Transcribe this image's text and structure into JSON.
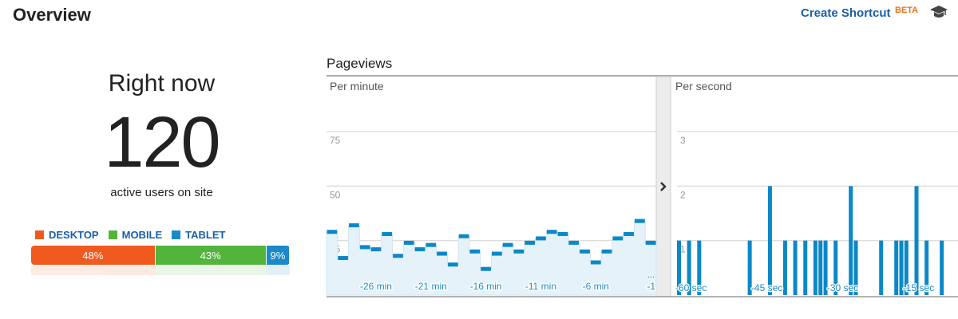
{
  "header": {
    "title": "Overview",
    "shortcut_label": "Create Shortcut",
    "beta_label": "BETA",
    "icon": "graduation-cap-icon"
  },
  "right_now": {
    "label": "Right now",
    "count": "120",
    "subtitle": "active users on site"
  },
  "devices": {
    "legend": [
      {
        "label": "DESKTOP",
        "color": "#f05a1e"
      },
      {
        "label": "MOBILE",
        "color": "#52b43b"
      },
      {
        "label": "TABLET",
        "color": "#1a8ac8"
      }
    ],
    "segments": [
      {
        "label": "48%",
        "value": 48,
        "color": "#f05a1e"
      },
      {
        "label": "43%",
        "value": 43,
        "color": "#52b43b"
      },
      {
        "label": "9%",
        "value": 9,
        "color": "#1a8ac8"
      }
    ]
  },
  "pageviews": {
    "title": "Pageviews",
    "per_minute_label": "Per minute",
    "per_second_label": "Per second",
    "expand_icon": "chevron-right-icon"
  },
  "chart_data": [
    {
      "type": "bar",
      "title": "Per minute",
      "x": [
        -30,
        -29,
        -28,
        -27,
        -26,
        -25,
        -24,
        -23,
        -22,
        -21,
        -20,
        -19,
        -18,
        -17,
        -16,
        -15,
        -14,
        -13,
        -12,
        -11,
        -10,
        -9,
        -8,
        -7,
        -6,
        -5,
        -4,
        -3,
        -2,
        -1
      ],
      "values": [
        29,
        17,
        32,
        22,
        21,
        28,
        18,
        24,
        21,
        23,
        19,
        14,
        27,
        20,
        12,
        19,
        23,
        20,
        24,
        26,
        29,
        28,
        24,
        20,
        15,
        20,
        26,
        28,
        34,
        24
      ],
      "yticks": [
        "25",
        "50",
        "75"
      ],
      "xticks": [
        "-26 min",
        "-21 min",
        "-16 min",
        "-11 min",
        "-6 min",
        "-1"
      ],
      "ylim": [
        0,
        75
      ],
      "grid": true,
      "color": "#0a88c8"
    },
    {
      "type": "bar",
      "title": "Per second",
      "x_start": -60,
      "values": [
        1,
        0,
        1,
        0,
        1,
        0,
        0,
        0,
        0,
        0,
        0,
        0,
        0,
        0,
        1,
        0,
        0,
        0,
        2,
        0,
        0,
        1,
        0,
        1,
        0,
        1,
        0,
        1,
        1,
        1,
        0,
        1,
        0,
        0,
        2,
        1,
        0,
        0,
        0,
        0,
        1,
        0,
        0,
        1,
        1,
        1,
        0,
        2,
        0,
        1,
        0,
        0,
        1,
        0,
        0,
        0,
        0
      ],
      "yticks": [
        "1",
        "2",
        "3"
      ],
      "xticks": [
        "-60 sec",
        "-45 sec",
        "-30 sec",
        "-15 sec"
      ],
      "ylim": [
        0,
        3
      ],
      "grid": true,
      "color": "#0a88c8"
    }
  ]
}
